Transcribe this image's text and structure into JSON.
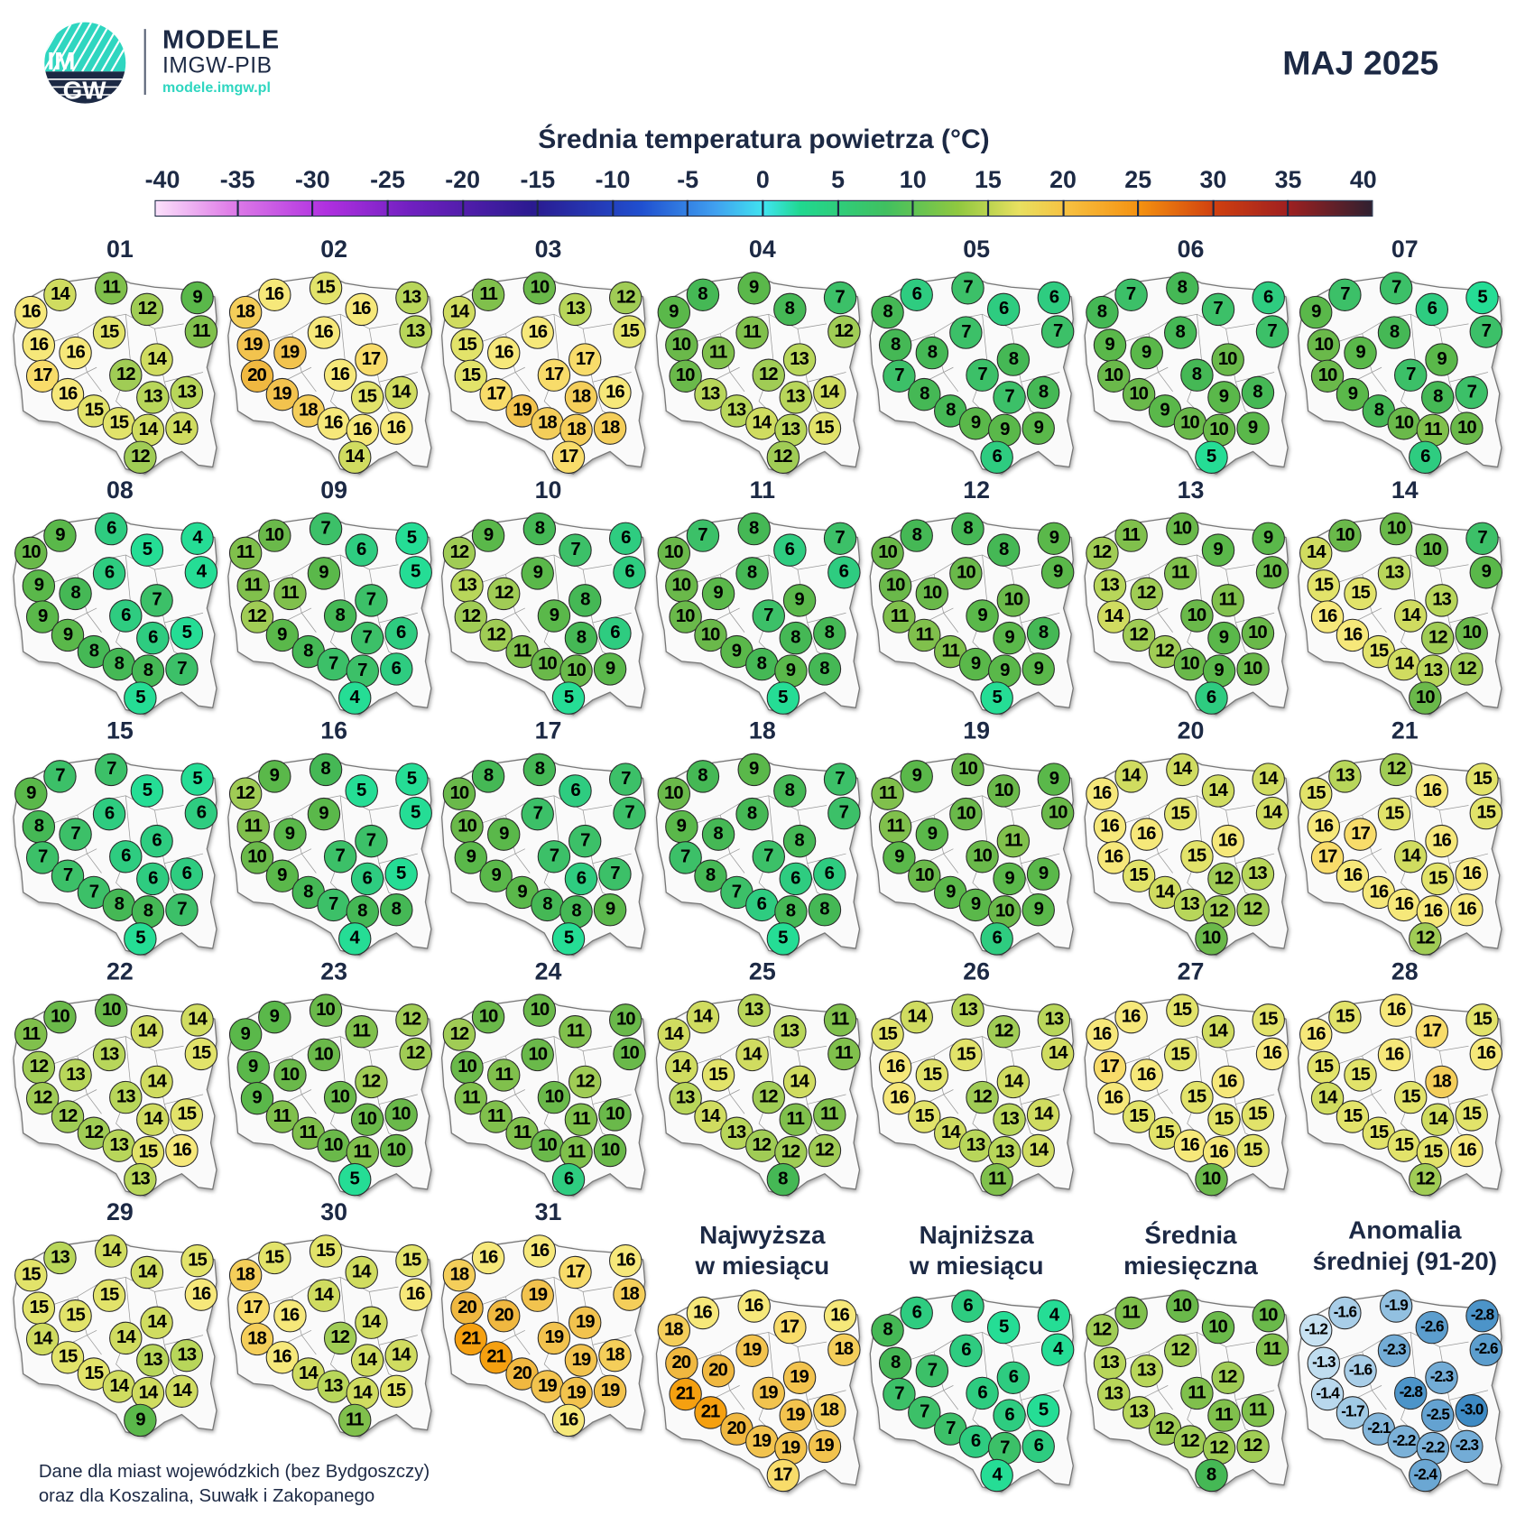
{
  "header": {
    "logo_text": "IMGW",
    "brand_title": "MODELE",
    "brand_subtitle": "IMGW-PIB",
    "brand_url": "modele.imgw.pl",
    "month": "MAJ 2025"
  },
  "colorbar": {
    "title": "Średnia temperatura powietrza (°C)",
    "ticks": [
      "-40",
      "-35",
      "-30",
      "-25",
      "-20",
      "-15",
      "-10",
      "-5",
      "0",
      "5",
      "10",
      "15",
      "20",
      "25",
      "30",
      "35",
      "40"
    ],
    "color_stops": [
      [
        4,
        "#25dd95"
      ],
      [
        5,
        "#2ecc80"
      ],
      [
        6,
        "#3cc068"
      ],
      [
        7,
        "#45b855"
      ],
      [
        8,
        "#5ab84a"
      ],
      [
        9,
        "#6ab94a"
      ],
      [
        10,
        "#80c04c"
      ],
      [
        11,
        "#a0cc55"
      ],
      [
        12,
        "#b8d65a"
      ],
      [
        13,
        "#d0dc60"
      ],
      [
        14,
        "#e2e36a"
      ],
      [
        15,
        "#f6e87a"
      ],
      [
        16,
        "#f8dc6a"
      ],
      [
        17,
        "#f4ce5a"
      ],
      [
        18,
        "#f2c34e"
      ],
      [
        19,
        "#f0b840"
      ],
      [
        20,
        "#f3ab2a"
      ],
      [
        21,
        "#f5a010"
      ]
    ],
    "anomaly_colors": {
      "low": "#3d8ac4",
      "high": "#c8e2f2"
    }
  },
  "days": [
    {
      "label": "01",
      "values": [
        14,
        11,
        12,
        9,
        16,
        11,
        15,
        16,
        16,
        14,
        17,
        12,
        16,
        13,
        13,
        15,
        15,
        14,
        14,
        12
      ]
    },
    {
      "label": "02",
      "values": [
        16,
        15,
        16,
        13,
        18,
        13,
        16,
        19,
        19,
        17,
        20,
        16,
        19,
        15,
        14,
        18,
        16,
        16,
        16,
        14
      ]
    },
    {
      "label": "03",
      "values": [
        11,
        10,
        13,
        12,
        14,
        15,
        16,
        15,
        16,
        17,
        15,
        17,
        17,
        18,
        16,
        19,
        18,
        18,
        18,
        17
      ]
    },
    {
      "label": "04",
      "values": [
        8,
        9,
        8,
        7,
        9,
        12,
        11,
        10,
        11,
        13,
        10,
        12,
        13,
        13,
        14,
        13,
        14,
        13,
        15,
        12
      ]
    },
    {
      "label": "05",
      "values": [
        6,
        7,
        6,
        6,
        8,
        7,
        7,
        8,
        8,
        8,
        7,
        7,
        8,
        7,
        8,
        8,
        9,
        9,
        9,
        6
      ]
    },
    {
      "label": "06",
      "values": [
        7,
        8,
        7,
        6,
        8,
        7,
        8,
        9,
        9,
        10,
        10,
        8,
        10,
        9,
        8,
        9,
        10,
        10,
        9,
        5
      ]
    },
    {
      "label": "07",
      "values": [
        7,
        7,
        6,
        5,
        9,
        7,
        8,
        10,
        9,
        9,
        10,
        7,
        9,
        8,
        7,
        8,
        10,
        11,
        10,
        6
      ]
    },
    {
      "label": "08",
      "values": [
        9,
        6,
        5,
        4,
        10,
        4,
        6,
        9,
        8,
        7,
        9,
        6,
        9,
        6,
        5,
        8,
        8,
        8,
        7,
        5
      ]
    },
    {
      "label": "09",
      "values": [
        10,
        7,
        6,
        5,
        11,
        5,
        9,
        11,
        11,
        7,
        12,
        8,
        9,
        7,
        6,
        8,
        7,
        7,
        6,
        4
      ]
    },
    {
      "label": "10",
      "values": [
        9,
        8,
        7,
        6,
        12,
        6,
        9,
        13,
        12,
        8,
        12,
        9,
        12,
        8,
        6,
        11,
        10,
        10,
        9,
        5
      ]
    },
    {
      "label": "11",
      "values": [
        7,
        8,
        6,
        7,
        10,
        6,
        8,
        10,
        9,
        9,
        10,
        7,
        10,
        8,
        8,
        9,
        8,
        9,
        8,
        5
      ]
    },
    {
      "label": "12",
      "values": [
        8,
        8,
        8,
        9,
        10,
        9,
        10,
        10,
        10,
        10,
        11,
        9,
        11,
        9,
        8,
        11,
        9,
        9,
        9,
        5
      ]
    },
    {
      "label": "13",
      "values": [
        11,
        10,
        9,
        9,
        12,
        10,
        11,
        13,
        12,
        11,
        14,
        10,
        12,
        9,
        10,
        12,
        10,
        9,
        10,
        6
      ]
    },
    {
      "label": "14",
      "values": [
        10,
        10,
        10,
        7,
        14,
        9,
        13,
        15,
        15,
        13,
        16,
        14,
        16,
        12,
        10,
        15,
        14,
        13,
        12,
        10
      ]
    },
    {
      "label": "15",
      "values": [
        7,
        7,
        5,
        5,
        9,
        6,
        6,
        8,
        7,
        6,
        7,
        6,
        7,
        6,
        6,
        7,
        8,
        8,
        7,
        5
      ]
    },
    {
      "label": "16",
      "values": [
        9,
        8,
        5,
        5,
        12,
        5,
        9,
        11,
        9,
        7,
        10,
        7,
        9,
        6,
        5,
        8,
        7,
        8,
        8,
        4
      ]
    },
    {
      "label": "17",
      "values": [
        8,
        8,
        6,
        7,
        10,
        7,
        7,
        10,
        9,
        7,
        9,
        7,
        9,
        6,
        7,
        9,
        8,
        8,
        9,
        5
      ]
    },
    {
      "label": "18",
      "values": [
        8,
        9,
        8,
        7,
        10,
        7,
        8,
        9,
        8,
        8,
        7,
        7,
        8,
        6,
        6,
        7,
        6,
        8,
        8,
        5
      ]
    },
    {
      "label": "19",
      "values": [
        9,
        10,
        10,
        9,
        11,
        10,
        10,
        11,
        9,
        11,
        9,
        10,
        10,
        9,
        9,
        9,
        9,
        10,
        9,
        6
      ]
    },
    {
      "label": "20",
      "values": [
        14,
        14,
        14,
        14,
        16,
        14,
        15,
        16,
        16,
        16,
        16,
        15,
        15,
        12,
        13,
        14,
        13,
        12,
        12,
        10
      ]
    },
    {
      "label": "21",
      "values": [
        13,
        12,
        16,
        15,
        15,
        15,
        15,
        16,
        17,
        16,
        17,
        14,
        16,
        15,
        16,
        16,
        16,
        16,
        16,
        12
      ]
    },
    {
      "label": "22",
      "values": [
        10,
        10,
        14,
        14,
        11,
        15,
        13,
        12,
        13,
        14,
        12,
        13,
        12,
        14,
        15,
        12,
        13,
        15,
        16,
        13
      ]
    },
    {
      "label": "23",
      "values": [
        9,
        10,
        11,
        12,
        9,
        12,
        10,
        9,
        10,
        12,
        9,
        10,
        11,
        10,
        10,
        11,
        10,
        11,
        10,
        5
      ]
    },
    {
      "label": "24",
      "values": [
        10,
        10,
        11,
        10,
        12,
        10,
        10,
        10,
        11,
        12,
        11,
        10,
        11,
        11,
        10,
        11,
        10,
        11,
        10,
        6
      ]
    },
    {
      "label": "25",
      "values": [
        14,
        13,
        13,
        11,
        14,
        11,
        14,
        14,
        15,
        14,
        13,
        12,
        14,
        11,
        11,
        13,
        12,
        12,
        12,
        8
      ]
    },
    {
      "label": "26",
      "values": [
        14,
        13,
        12,
        13,
        15,
        14,
        15,
        16,
        15,
        14,
        16,
        12,
        15,
        13,
        14,
        14,
        13,
        13,
        14,
        11
      ]
    },
    {
      "label": "27",
      "values": [
        16,
        15,
        14,
        15,
        16,
        16,
        15,
        17,
        16,
        16,
        16,
        15,
        15,
        15,
        15,
        15,
        16,
        16,
        15,
        10
      ]
    },
    {
      "label": "28",
      "values": [
        15,
        16,
        17,
        15,
        16,
        16,
        16,
        15,
        15,
        18,
        14,
        15,
        15,
        14,
        15,
        15,
        15,
        15,
        16,
        12
      ]
    },
    {
      "label": "29",
      "values": [
        13,
        14,
        14,
        15,
        15,
        16,
        15,
        15,
        15,
        14,
        14,
        14,
        15,
        13,
        13,
        15,
        14,
        14,
        14,
        9
      ]
    },
    {
      "label": "30",
      "values": [
        15,
        15,
        14,
        15,
        18,
        16,
        14,
        17,
        16,
        14,
        18,
        12,
        16,
        14,
        14,
        14,
        13,
        14,
        15,
        11
      ]
    },
    {
      "label": "31",
      "values": [
        16,
        16,
        17,
        16,
        18,
        18,
        19,
        20,
        20,
        19,
        21,
        19,
        21,
        19,
        18,
        20,
        19,
        19,
        19,
        16
      ]
    }
  ],
  "summaries": [
    {
      "title1": "Najwyższa",
      "title2": "w miesiącu",
      "type": "temp",
      "values": [
        16,
        16,
        17,
        16,
        18,
        18,
        19,
        20,
        20,
        19,
        21,
        19,
        21,
        19,
        18,
        20,
        19,
        19,
        19,
        17
      ]
    },
    {
      "title1": "Najniższa",
      "title2": "w miesiącu",
      "type": "temp",
      "values": [
        6,
        6,
        5,
        4,
        8,
        4,
        6,
        8,
        7,
        6,
        7,
        6,
        7,
        6,
        5,
        7,
        6,
        7,
        6,
        4
      ]
    },
    {
      "title1": "Średnia",
      "title2": "miesięczna",
      "type": "temp",
      "values": [
        11,
        10,
        10,
        10,
        12,
        11,
        12,
        13,
        13,
        12,
        13,
        11,
        13,
        11,
        11,
        12,
        12,
        12,
        12,
        8
      ]
    },
    {
      "title1": "Anomalia",
      "title2": "średniej (91-20)",
      "type": "anomaly",
      "values": [
        "-1.6",
        "-1.9",
        "-2.6",
        "-2.8",
        "-1.2",
        "-2.6",
        "-2.3",
        "-1.3",
        "-1.6",
        "-2.3",
        "-1.4",
        "-2.8",
        "-1.7",
        "-2.5",
        "-3.0",
        "-2.1",
        "-2.2",
        "-2.2",
        "-2.3",
        "-2.4"
      ]
    }
  ],
  "footnote": {
    "line1": "Dane dla miast wojewódzkich (bez Bydgoszczy)",
    "line2": "oraz dla Koszalina, Suwałk i Zakopanego"
  }
}
